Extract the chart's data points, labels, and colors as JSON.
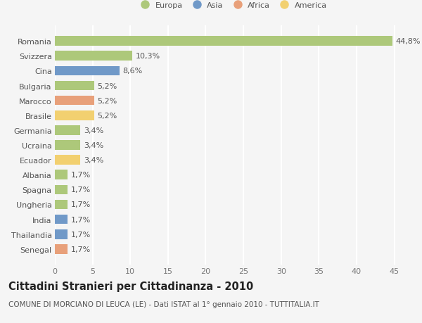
{
  "countries": [
    "Romania",
    "Svizzera",
    "Cina",
    "Bulgaria",
    "Marocco",
    "Brasile",
    "Germania",
    "Ucraina",
    "Ecuador",
    "Albania",
    "Spagna",
    "Ungheria",
    "India",
    "Thailandia",
    "Senegal"
  ],
  "values": [
    44.8,
    10.3,
    8.6,
    5.2,
    5.2,
    5.2,
    3.4,
    3.4,
    3.4,
    1.7,
    1.7,
    1.7,
    1.7,
    1.7,
    1.7
  ],
  "labels": [
    "44,8%",
    "10,3%",
    "8,6%",
    "5,2%",
    "5,2%",
    "5,2%",
    "3,4%",
    "3,4%",
    "3,4%",
    "1,7%",
    "1,7%",
    "1,7%",
    "1,7%",
    "1,7%",
    "1,7%"
  ],
  "colors": [
    "#adc87a",
    "#adc87a",
    "#7099c8",
    "#adc87a",
    "#e8a07a",
    "#f2d070",
    "#adc87a",
    "#adc87a",
    "#f2d070",
    "#adc87a",
    "#adc87a",
    "#adc87a",
    "#7099c8",
    "#7099c8",
    "#e8a07a"
  ],
  "legend_labels": [
    "Europa",
    "Asia",
    "Africa",
    "America"
  ],
  "legend_colors": [
    "#adc87a",
    "#7099c8",
    "#e8a07a",
    "#f2d070"
  ],
  "title": "Cittadini Stranieri per Cittadinanza - 2010",
  "subtitle": "COMUNE DI MORCIANO DI LEUCA (LE) - Dati ISTAT al 1° gennaio 2010 - TUTTITALIA.IT",
  "xlim": [
    0,
    47
  ],
  "xticks": [
    0,
    5,
    10,
    15,
    20,
    25,
    30,
    35,
    40,
    45
  ],
  "background_color": "#f5f5f5",
  "grid_color": "#ffffff",
  "bar_height": 0.65,
  "label_fontsize": 8,
  "title_fontsize": 10.5,
  "subtitle_fontsize": 7.5,
  "tick_fontsize": 8
}
